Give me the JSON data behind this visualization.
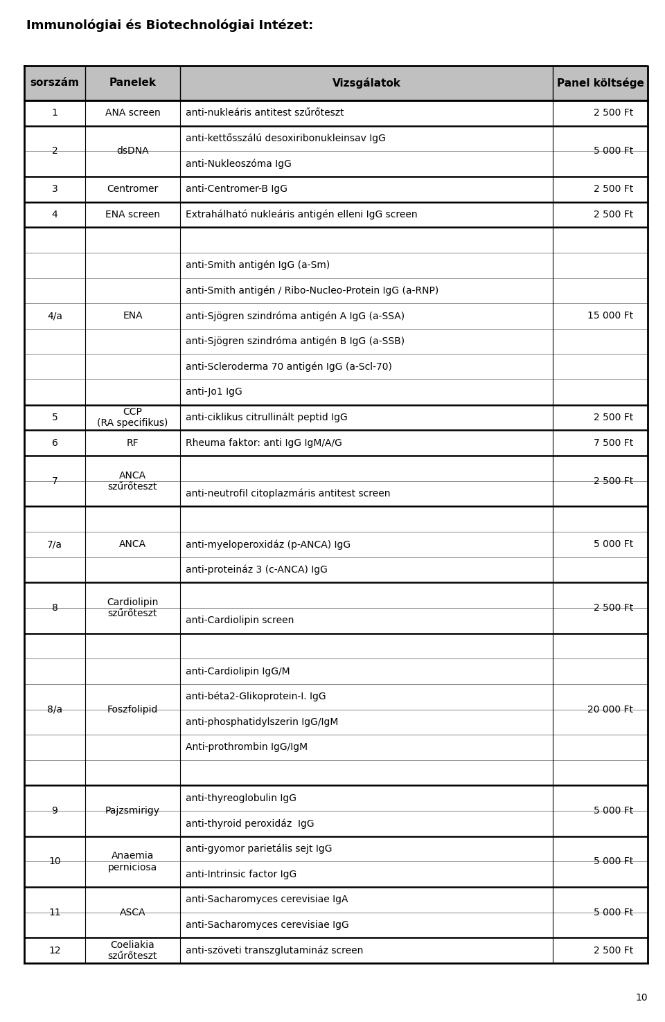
{
  "title": "Immunológiai és Biotechnológiai Intézet:",
  "header_bg": "#c0c0c0",
  "col_headers": [
    "sorszám",
    "Panelek",
    "Vizsgálatok",
    "Panel költsége"
  ],
  "page_number": "10",
  "rows": [
    {
      "num": "1",
      "panel": "ANA screen",
      "tests": [
        "anti-nukleáris antitest szűrőteszt"
      ],
      "cost": "2 500 Ft",
      "group_size": 1
    },
    {
      "num": "2",
      "panel": "dsDNA",
      "tests": [
        "anti-kettősszálú desoxiribonukleinsav IgG",
        "anti-Nukleoszóma IgG"
      ],
      "cost": "5 000 Ft",
      "group_size": 2
    },
    {
      "num": "3",
      "panel": "Centromer",
      "tests": [
        "anti-Centromer-B IgG"
      ],
      "cost": "2 500 Ft",
      "group_size": 1
    },
    {
      "num": "4",
      "panel": "ENA screen",
      "tests": [
        "Extrahálható nukleáris antigén elleni IgG screen"
      ],
      "cost": "2 500 Ft",
      "group_size": 1
    },
    {
      "num": "4/a",
      "panel": "ENA",
      "tests": [
        "",
        "anti-Smith antigén IgG (a-Sm)",
        "anti-Smith antigén / Ribo-Nucleo-Protein IgG (a-RNP)",
        "anti-Sjögren szindróma antigén A IgG (a-SSA)",
        "anti-Sjögren szindróma antigén B IgG (a-SSB)",
        "anti-Scleroderma 70 antigén IgG (a-Scl-70)",
        "anti-Jo1 IgG"
      ],
      "cost": "15 000 Ft",
      "group_size": 7
    },
    {
      "num": "5",
      "panel": "CCP\n(RA specifikus)",
      "tests": [
        "anti-ciklikus citrullinált peptid IgG"
      ],
      "cost": "2 500 Ft",
      "group_size": 1
    },
    {
      "num": "6",
      "panel": "RF",
      "tests": [
        "Rheuma faktor: anti IgG IgM/A/G"
      ],
      "cost": "7 500 Ft",
      "group_size": 1
    },
    {
      "num": "7",
      "panel": "ANCA\nszűrőteszt",
      "tests": [
        "",
        "anti-neutrofil citoplazmáris antitest screen"
      ],
      "cost": "2 500 Ft",
      "group_size": 2
    },
    {
      "num": "7/a",
      "panel": "ANCA",
      "tests": [
        "",
        "anti-myeloperoxidáz (p-ANCA) IgG",
        "anti-proteináz 3 (c-ANCA) IgG"
      ],
      "cost": "5 000 Ft",
      "group_size": 3
    },
    {
      "num": "8",
      "panel": "Cardiolipin\nszűrőteszt",
      "tests": [
        "",
        "anti-Cardiolipin screen"
      ],
      "cost": "2 500 Ft",
      "group_size": 2
    },
    {
      "num": "8/a",
      "panel": "Foszfolipid",
      "tests": [
        "",
        "anti-Cardiolipin IgG/M",
        "anti-béta2-Glikoprotein-I. IgG",
        "anti-phosphatidylszerin IgG/IgM",
        "Anti-prothrombin IgG/IgM",
        ""
      ],
      "cost": "20 000 Ft",
      "group_size": 6
    },
    {
      "num": "9",
      "panel": "Pajzsmirigy",
      "tests": [
        "anti-thyreoglobulin IgG",
        "anti-thyroid peroxidáz  IgG"
      ],
      "cost": "5 000 Ft",
      "group_size": 2
    },
    {
      "num": "10",
      "panel": "Anaemia\nperniciosa",
      "tests": [
        "anti-gyomor parietális sejt IgG",
        "anti-Intrinsic factor IgG"
      ],
      "cost": "5 000 Ft",
      "group_size": 2
    },
    {
      "num": "11",
      "panel": "ASCA",
      "tests": [
        "anti-Sacharomyces cerevisiae IgA",
        "anti-Sacharomyces cerevisiae IgG"
      ],
      "cost": "5 000 Ft",
      "group_size": 2
    },
    {
      "num": "12",
      "panel": "Coeliakia\nszűrőteszt",
      "tests": [
        "anti-szöveti transzglutamináz screen"
      ],
      "cost": "2 500 Ft",
      "group_size": 1
    }
  ]
}
